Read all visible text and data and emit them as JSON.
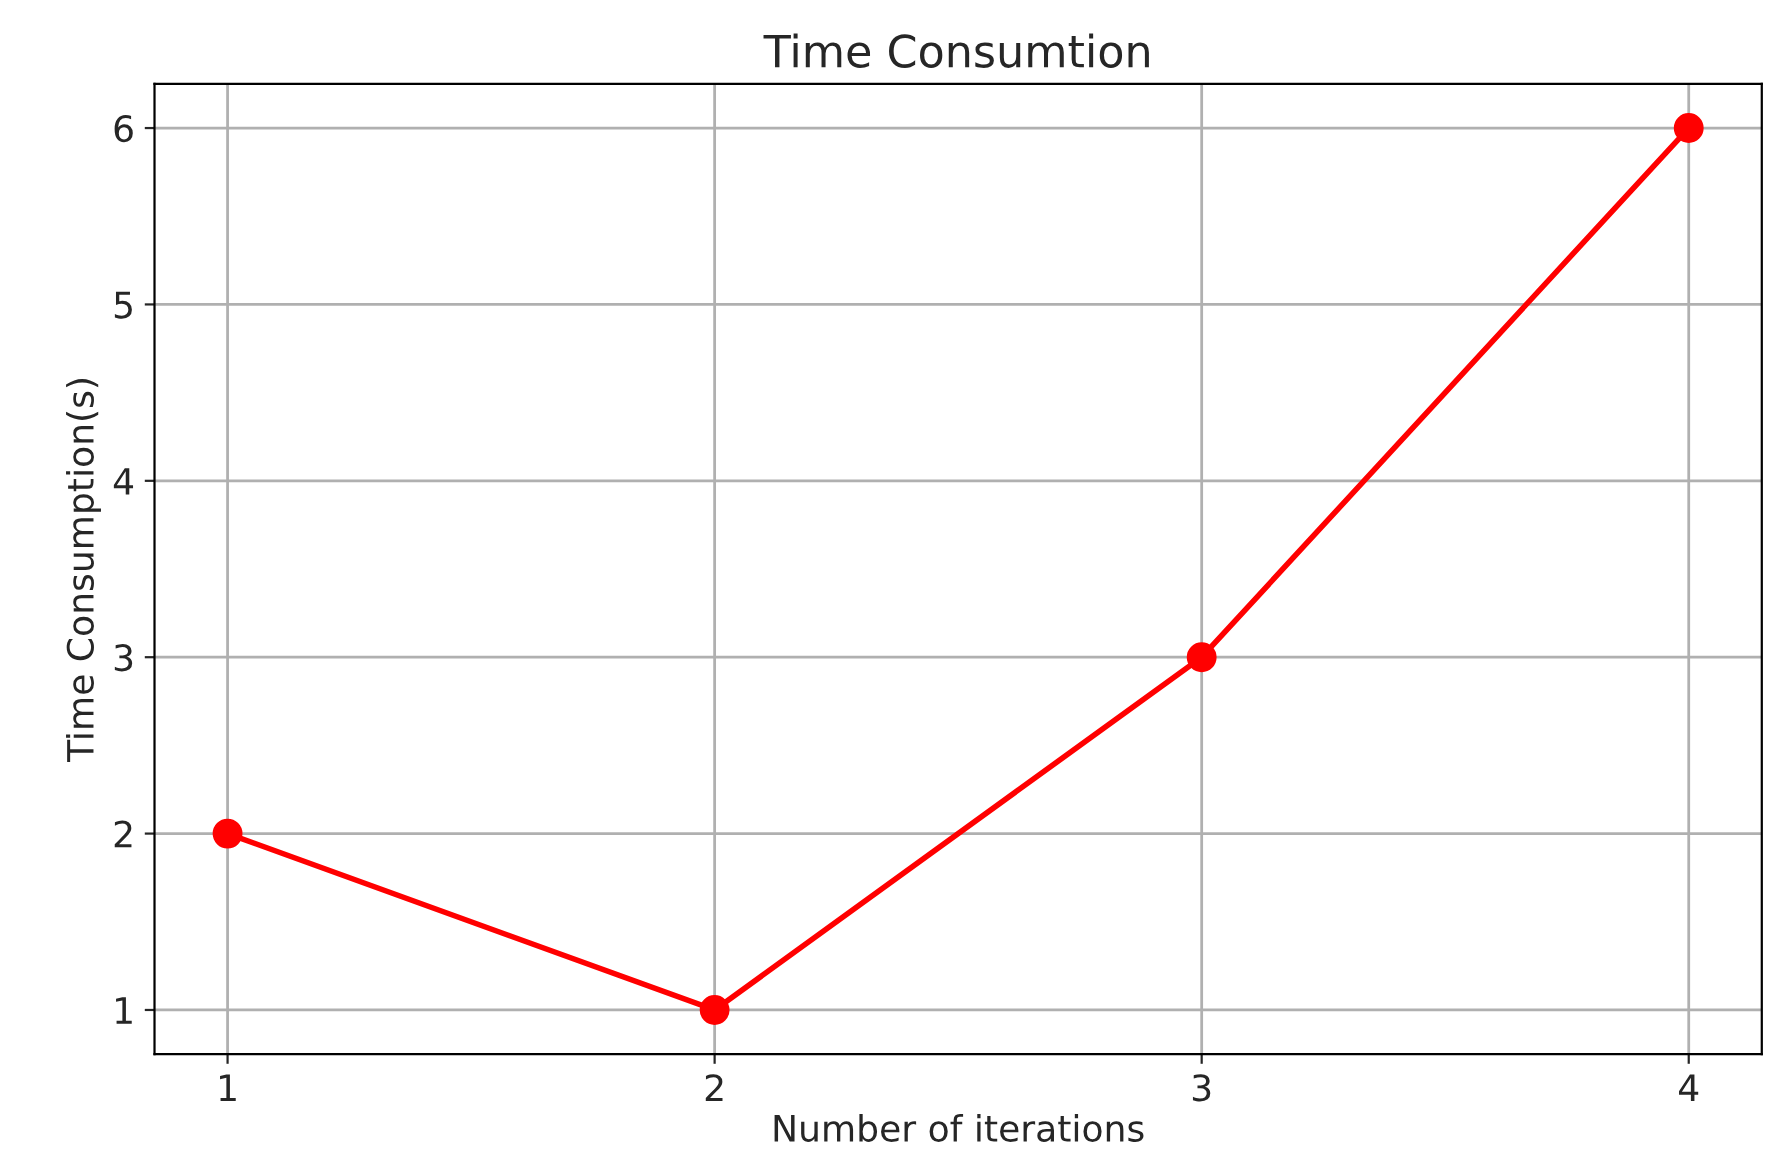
{
  "chart_data": {
    "type": "line",
    "title": "Time Consumtion",
    "xlabel": "Number of iterations",
    "ylabel": "Time Consumption(s)",
    "x": [
      1,
      2,
      3,
      4
    ],
    "series": [
      {
        "color": "#ff0000",
        "values": [
          2,
          1,
          3,
          6
        ]
      }
    ],
    "xlim": [
      0.85,
      4.15
    ],
    "ylim": [
      0.75,
      6.25
    ],
    "xticks": [
      1,
      2,
      3,
      4
    ],
    "yticks": [
      1,
      2,
      3,
      4,
      5,
      6
    ],
    "grid": true,
    "marker": "circle",
    "line_style": "solid"
  }
}
